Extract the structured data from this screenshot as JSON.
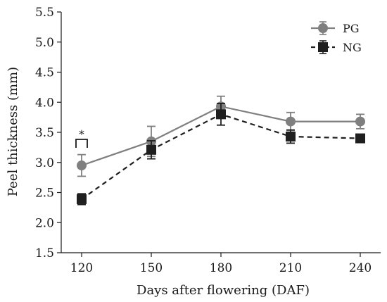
{
  "chart_data": {
    "type": "line",
    "xlabel": "Days after flowering (DAF)",
    "ylabel": "Peel thickness (mm)",
    "x": [
      120,
      150,
      180,
      210,
      240
    ],
    "xticks": [
      "120",
      "150",
      "180",
      "210",
      "240"
    ],
    "ylim": [
      1.5,
      5.5
    ],
    "yticks": [
      "1.5",
      "2.0",
      "2.5",
      "3.0",
      "3.5",
      "4.0",
      "4.5",
      "5.0",
      "5.5"
    ],
    "legend_position": "top-right",
    "grid": false,
    "series": [
      {
        "name": "PG",
        "values": [
          2.95,
          3.35,
          3.93,
          3.68,
          3.68
        ],
        "errors": [
          0.18,
          0.25,
          0.17,
          0.15,
          0.12
        ],
        "color": "#7f7f7f",
        "marker": "circle",
        "line_style": "solid"
      },
      {
        "name": "NG",
        "values": [
          2.39,
          3.21,
          3.8,
          3.43,
          3.4
        ],
        "errors": [
          0.09,
          0.15,
          0.18,
          0.11,
          0.06
        ],
        "color": "#1f1f1f",
        "marker": "square",
        "line_style": "dashed"
      }
    ],
    "annotations": [
      {
        "text": "*",
        "x": 120
      }
    ]
  }
}
